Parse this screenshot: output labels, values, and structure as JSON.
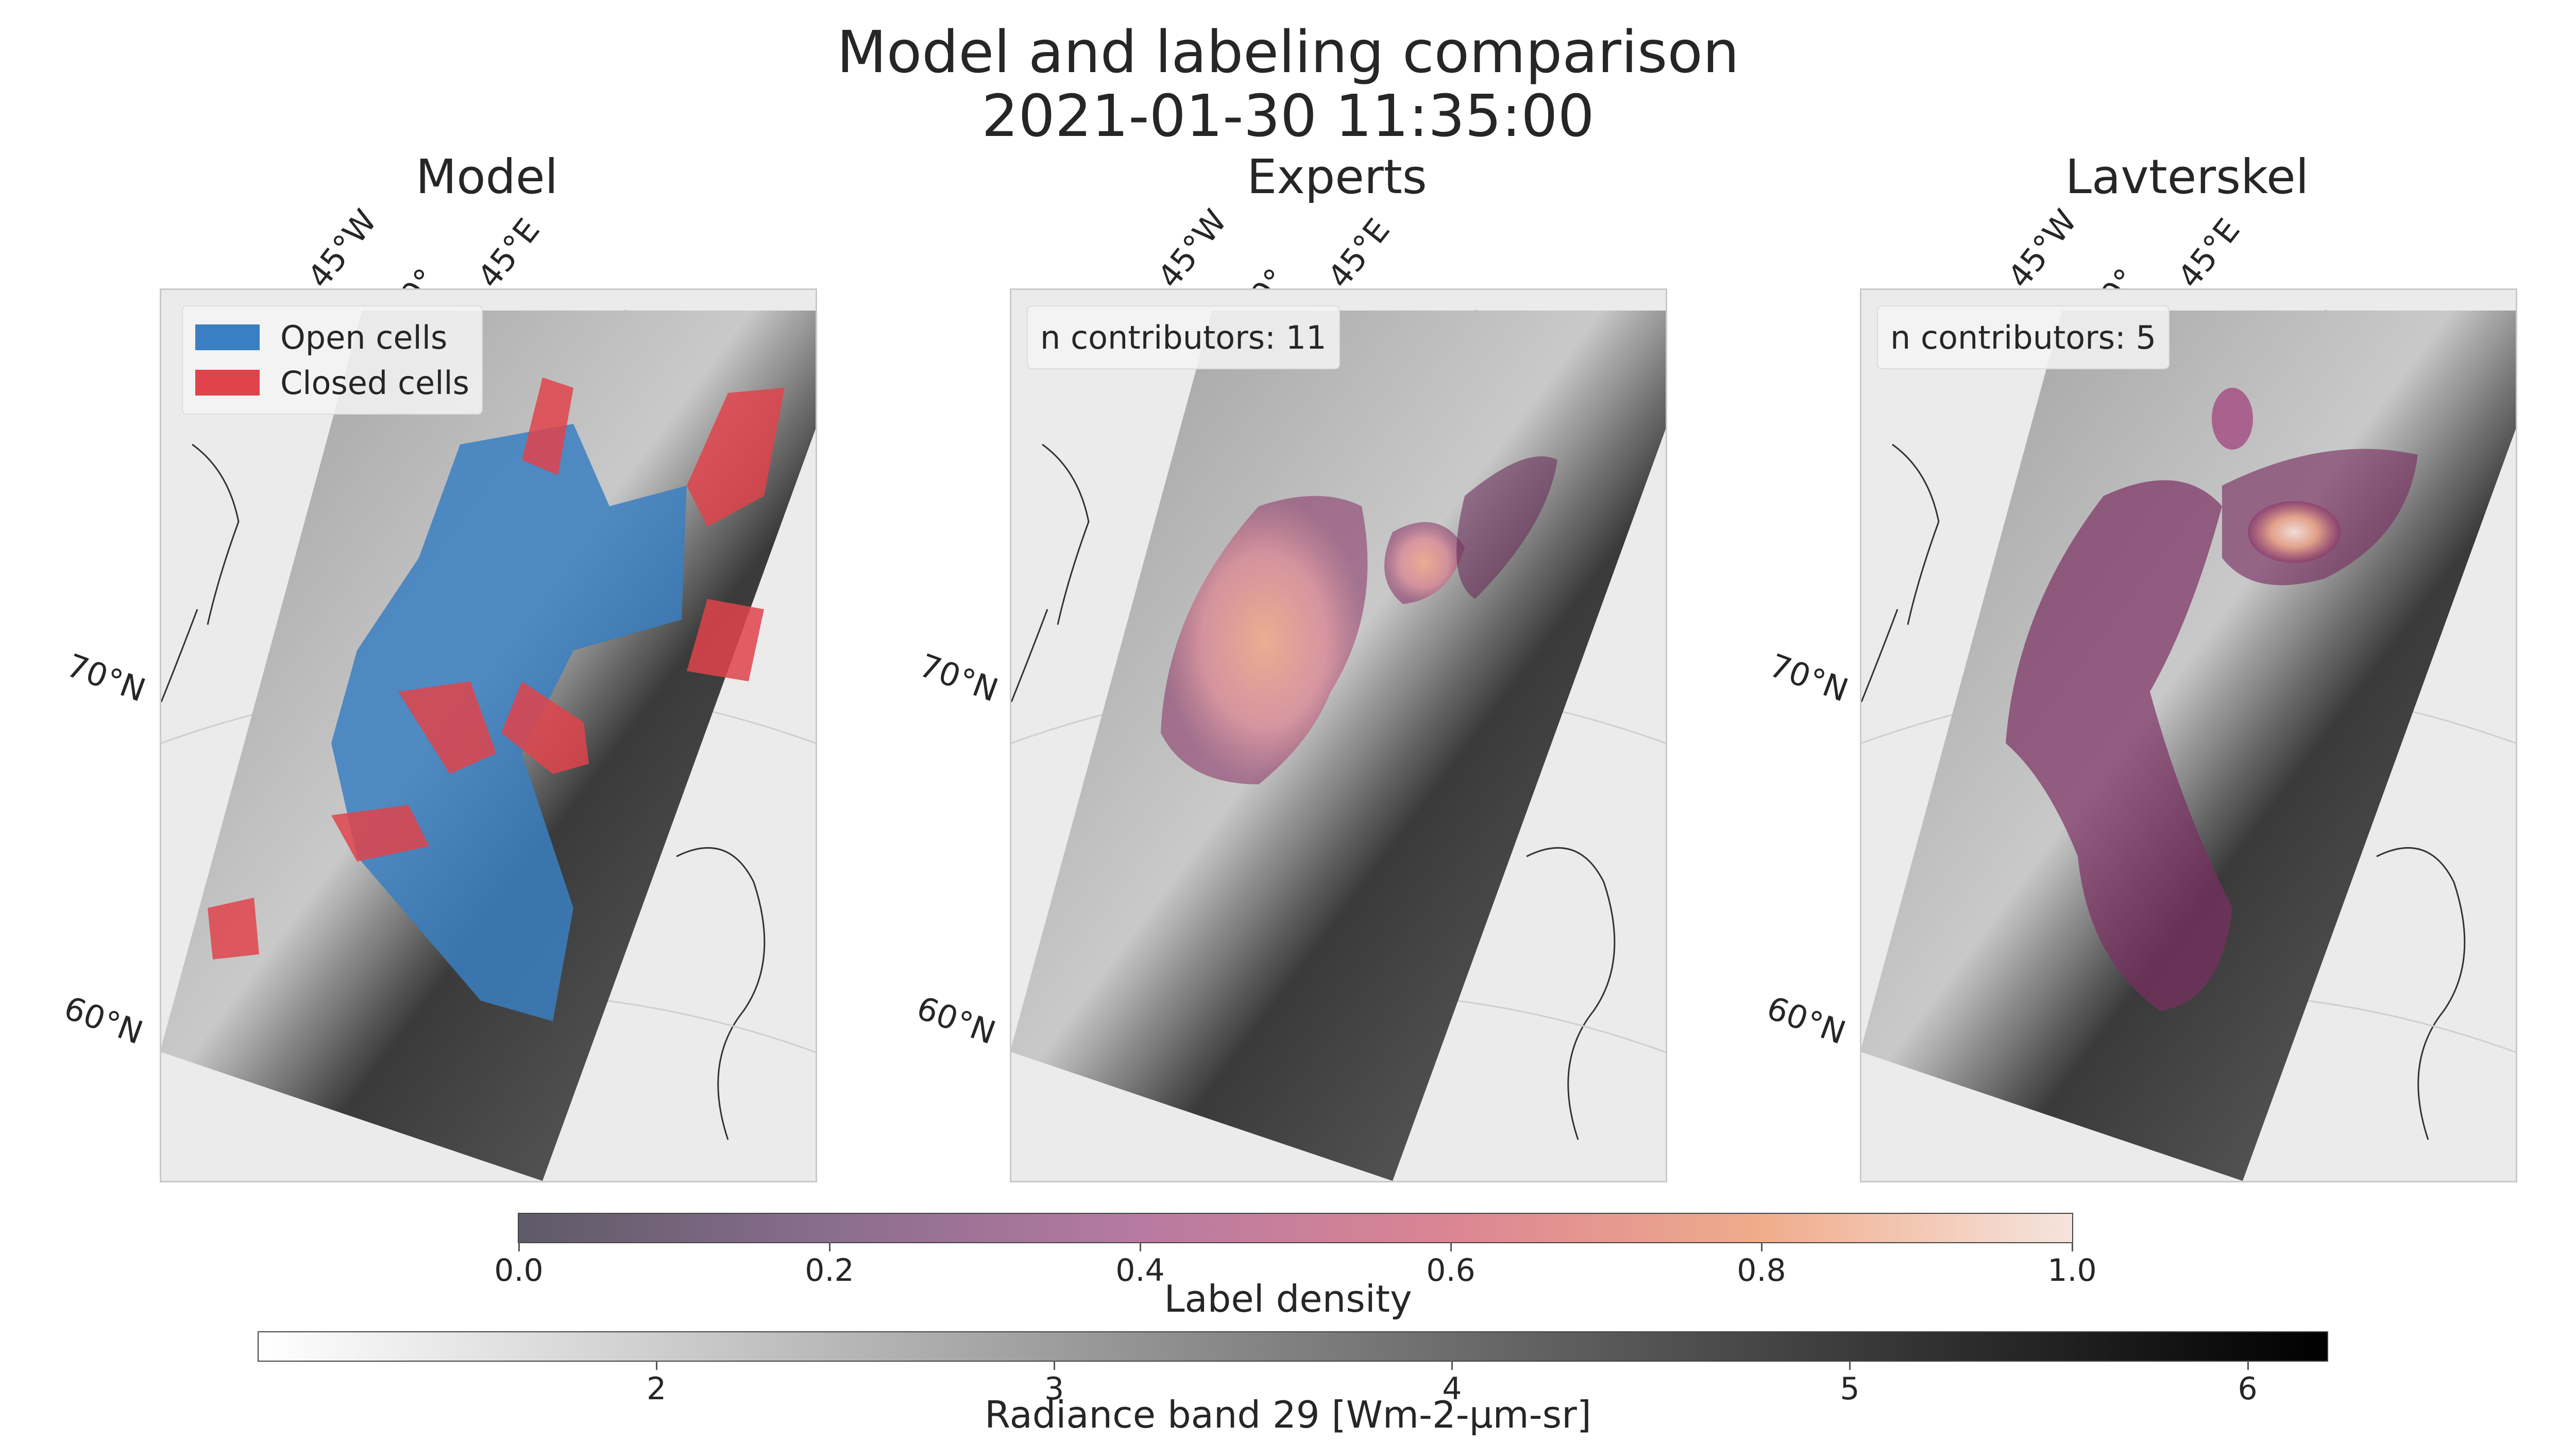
{
  "figure": {
    "title_line1": "Model and labeling comparison",
    "title_line2": "2021-01-30 11:35:00"
  },
  "panels": [
    {
      "title": "Model",
      "lon_labels": [
        "45°W",
        "0°",
        "45°E"
      ],
      "lat_labels": [
        "70°N",
        "60°N"
      ],
      "legend": [
        {
          "label": "Open cells",
          "color": "#3a7fc1"
        },
        {
          "label": "Closed cells",
          "color": "#e0434b"
        }
      ]
    },
    {
      "title": "Experts",
      "lon_labels": [
        "45°W",
        "0°",
        "45°E"
      ],
      "lat_labels": [
        "70°N",
        "60°N"
      ],
      "annotation": "n contributors: 11"
    },
    {
      "title": "Lavterskel",
      "lon_labels": [
        "45°W",
        "0°",
        "45°E"
      ],
      "lat_labels": [
        "70°N",
        "60°N"
      ],
      "annotation": "n contributors: 5"
    }
  ],
  "colorbars": [
    {
      "label": "Label density",
      "ticks": [
        "0.0",
        "0.2",
        "0.4",
        "0.6",
        "0.8",
        "1.0"
      ],
      "range": [
        0.0,
        1.0
      ],
      "colormap": [
        "#5e5a66",
        "#8a6d8f",
        "#b77aa0",
        "#db8593",
        "#f0ac8c",
        "#f5e4dd"
      ]
    },
    {
      "label": "Radiance band 29 [Wm-2-µm-sr]",
      "ticks": [
        "2",
        "3",
        "4",
        "5",
        "6"
      ],
      "range": [
        1.0,
        6.2
      ],
      "colormap": [
        "#ffffff",
        "#000000"
      ]
    }
  ],
  "chart_data": {
    "type": "heatmap",
    "title": "Model and labeling comparison 2021-01-30 11:35:00",
    "subplots": [
      "Model",
      "Experts",
      "Lavterskel"
    ],
    "label_density_range": [
      0.0,
      1.0
    ],
    "radiance_range": [
      1.0,
      6.2
    ],
    "categories": [
      "Open cells",
      "Closed cells"
    ]
  }
}
